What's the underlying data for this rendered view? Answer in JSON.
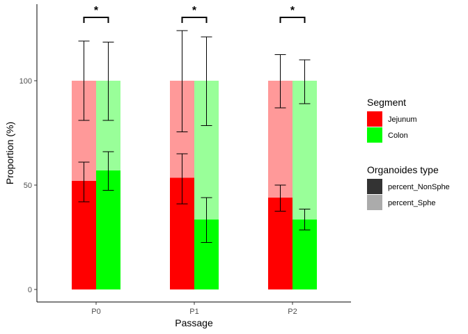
{
  "chart_data": {
    "type": "bar",
    "subtype": "stacked-grouped",
    "title": "",
    "xlabel": "Passage",
    "ylabel": "Proportion (%)",
    "categories": [
      "P0",
      "P1",
      "P2"
    ],
    "ylim": [
      -4,
      136
    ],
    "yticks": [
      0,
      50,
      100
    ],
    "grid": false,
    "legend_position": "right",
    "segments": [
      {
        "name": "Jejunum",
        "color": "#ff0000",
        "light_color": "#ff9999",
        "nonsphe_values": [
          52,
          53.5,
          44
        ],
        "nonsphe_error": [
          [
            42,
            61
          ],
          [
            41,
            65
          ],
          [
            37.5,
            50
          ]
        ],
        "total_values": [
          100,
          100,
          100
        ],
        "total_error": [
          [
            81,
            119
          ],
          [
            75.5,
            124
          ],
          [
            87,
            112.5
          ]
        ]
      },
      {
        "name": "Colon",
        "color": "#00ff00",
        "light_color": "#99ff99",
        "nonsphe_values": [
          57,
          33.5,
          33.5
        ],
        "nonsphe_error": [
          [
            47.5,
            66
          ],
          [
            22.5,
            44
          ],
          [
            28.5,
            38.5
          ]
        ],
        "total_values": [
          100,
          100,
          100
        ],
        "total_error": [
          [
            81,
            118.5
          ],
          [
            78.5,
            121
          ],
          [
            89,
            110
          ]
        ]
      }
    ],
    "annotations": [
      {
        "category": "P0",
        "label": "*"
      },
      {
        "category": "P1",
        "label": "*"
      },
      {
        "category": "P2",
        "label": "*"
      }
    ],
    "legends": [
      {
        "title": "Segment",
        "items": [
          {
            "label": "Jejunum",
            "color": "#ff0000"
          },
          {
            "label": "Colon",
            "color": "#00ff00"
          }
        ]
      },
      {
        "title": "Organoides type",
        "items": [
          {
            "label": "percent_NonSphe",
            "color": "#333333"
          },
          {
            "label": "percent_Sphe",
            "color": "#ababab"
          }
        ]
      }
    ]
  }
}
